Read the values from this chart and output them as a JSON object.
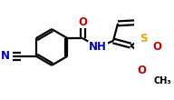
{
  "bg_color": "#ffffff",
  "bond_color": "#000000",
  "bond_width": 1.6,
  "atom_colors": {
    "N": "#0000cc",
    "O": "#cc0000",
    "S": "#ddaa00",
    "C": "#000000"
  },
  "font_size_main": 8.5,
  "font_size_sub": 7.0,
  "figsize": [
    1.92,
    1.1
  ],
  "dpi": 100
}
